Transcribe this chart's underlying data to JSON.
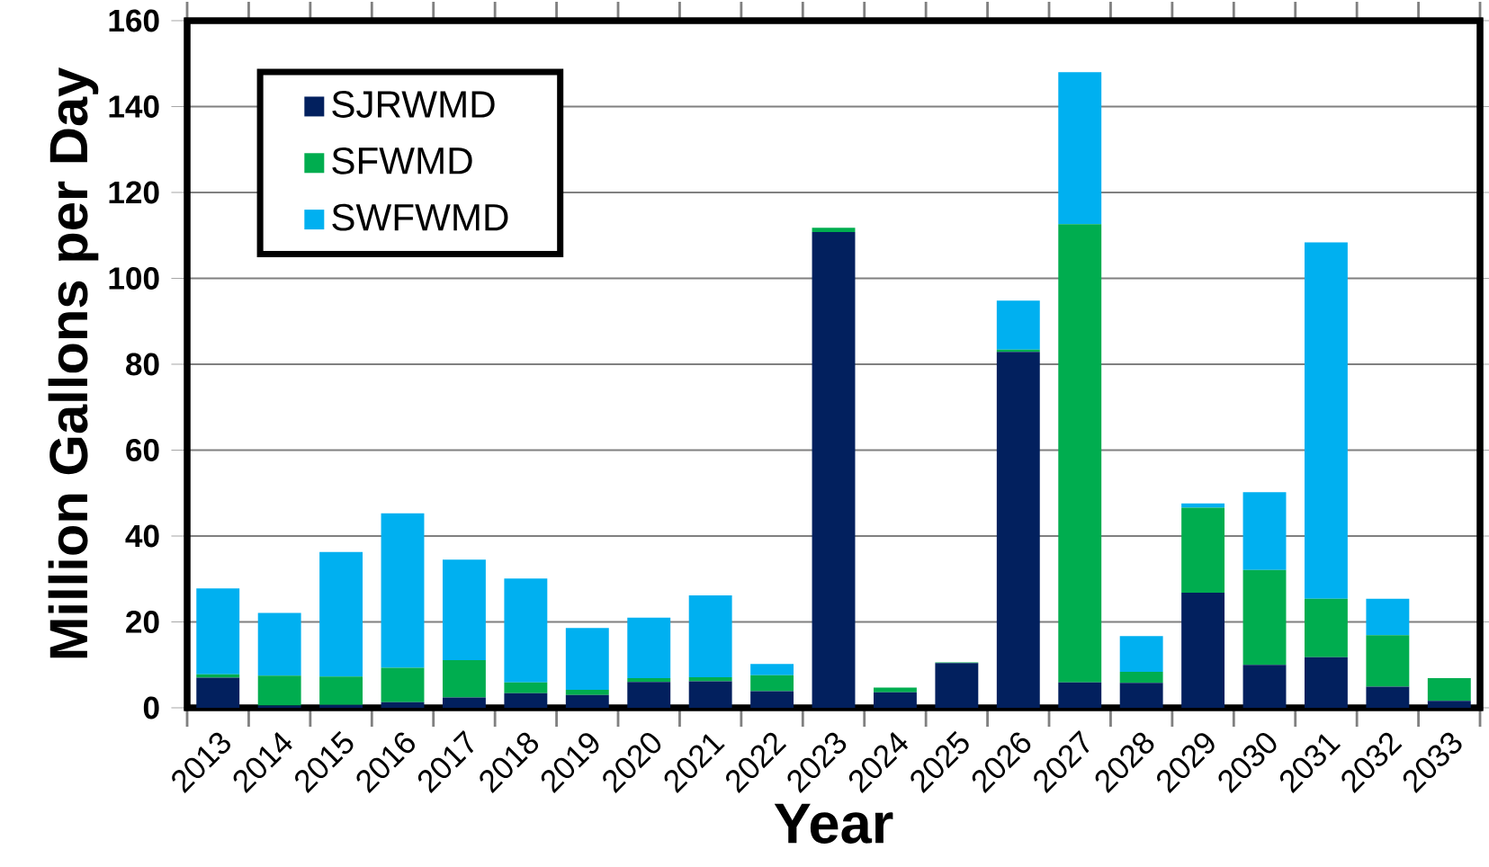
{
  "chart_data": {
    "type": "bar",
    "stacked": true,
    "xlabel": "Year",
    "ylabel": "Million Gallons per Day",
    "categories": [
      "2013",
      "2014",
      "2015",
      "2016",
      "2017",
      "2018",
      "2019",
      "2020",
      "2021",
      "2022",
      "2023",
      "2024",
      "2025",
      "2026",
      "2027",
      "2028",
      "2029",
      "2030",
      "2031",
      "2032",
      "2033"
    ],
    "series": [
      {
        "name": "SJRWMD",
        "color": "#02205e",
        "values": [
          7.0,
          0.5,
          0.7,
          1.3,
          2.4,
          3.4,
          3.0,
          6.0,
          6.2,
          3.9,
          110.8,
          3.6,
          10.4,
          82.9,
          5.9,
          5.8,
          26.8,
          10.0,
          11.8,
          4.9,
          1.6
        ]
      },
      {
        "name": "SFWMD",
        "color": "#00ad4f",
        "values": [
          0.8,
          7.0,
          6.6,
          8.0,
          8.7,
          2.5,
          1.2,
          0.9,
          0.9,
          3.7,
          1.0,
          1.1,
          0.2,
          0.5,
          106.7,
          2.6,
          19.8,
          22.1,
          13.6,
          12.0,
          5.3
        ]
      },
      {
        "name": "SWFWMD",
        "color": "#00b0f0",
        "values": [
          20.0,
          14.6,
          29.0,
          36.0,
          23.4,
          24.2,
          14.4,
          14.1,
          19.1,
          2.6,
          0,
          0,
          0,
          11.4,
          35.4,
          8.3,
          1.0,
          18.1,
          83.0,
          8.5,
          0
        ]
      }
    ],
    "ylim": [
      0,
      160
    ],
    "yticks": [
      0,
      20,
      40,
      60,
      80,
      100,
      120,
      140,
      160
    ],
    "grid": "y",
    "legend": "top left"
  }
}
